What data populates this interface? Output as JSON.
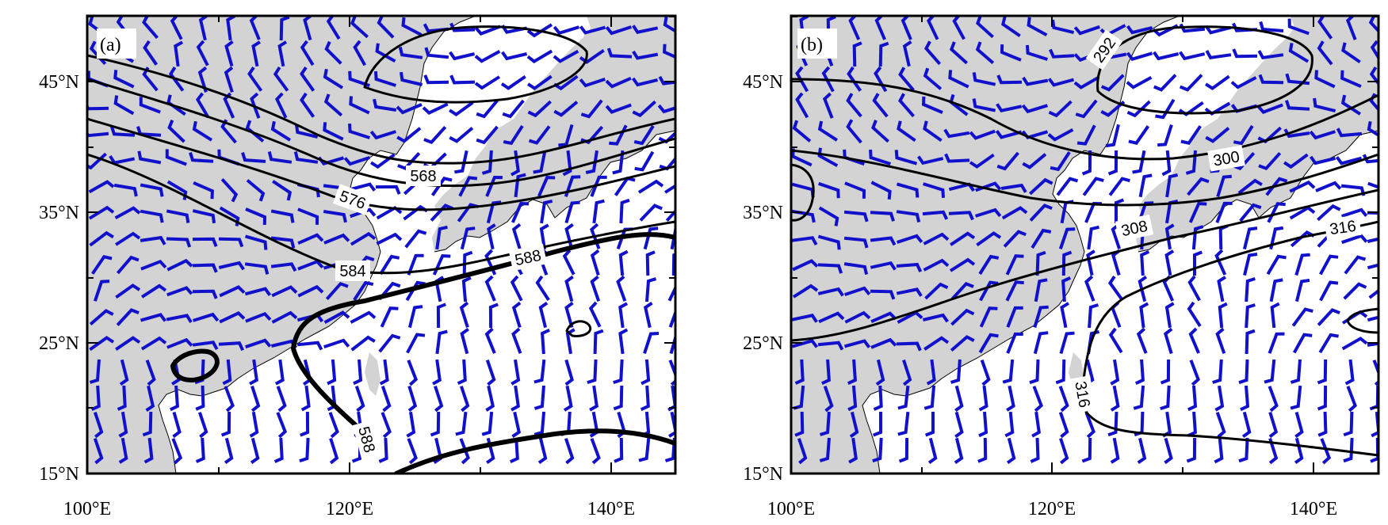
{
  "figure": {
    "colors": {
      "land": "#d3d3d3",
      "sea": "#ffffff",
      "wind_barb": "#1111cc",
      "contour": "#000000",
      "coastline": "#000000"
    },
    "panels": [
      {
        "label": "(a)",
        "xticks": [
          "100°E",
          "120°E",
          "140°E"
        ],
        "yticks": [
          "15°N",
          "25°N",
          "35°N",
          "45°N"
        ],
        "contour_labels": [
          "568",
          "576",
          "584",
          "588",
          "588"
        ]
      },
      {
        "label": "(b)",
        "xticks": [
          "100°E",
          "120°E",
          "140°E"
        ],
        "yticks": [
          "15°N",
          "25°N",
          "35°N",
          "45°N"
        ],
        "contour_labels": [
          "292",
          "300",
          "308",
          "316",
          "316"
        ]
      }
    ]
  }
}
